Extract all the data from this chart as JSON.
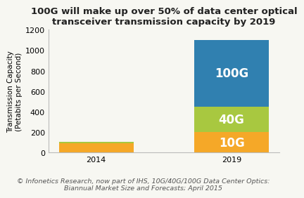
{
  "title_line1": "100G will make up over 50% of data center optical",
  "title_line2": "transceiver transmission capacity by 2019",
  "categories": [
    "2014",
    "2019"
  ],
  "values_10G": [
    90,
    200
  ],
  "values_40G": [
    15,
    250
  ],
  "values_100G": [
    0,
    650
  ],
  "color_10G": "#F5A828",
  "color_40G": "#A8C840",
  "color_100G": "#3080B0",
  "ylabel_top": "Transmission Capacity",
  "ylabel_bot": "(Petabits per Second)",
  "ylim": [
    0,
    1200
  ],
  "yticks": [
    0,
    200,
    400,
    600,
    800,
    1000,
    1200
  ],
  "label_10G": "10G",
  "label_40G": "40G",
  "label_100G": "100G",
  "footnote_line1": "© Infonetics Research, now part of IHS, 10G/40G/100G Data Center Optics:",
  "footnote_line2": "Biannual Market Size and Forecasts; April 2015",
  "background_color": "#f7f7f2",
  "bar_width": 0.55,
  "title_fontsize": 9.5,
  "label_fontsize": 12,
  "axis_fontsize": 7.5,
  "footnote_fontsize": 6.8,
  "tick_fontsize": 8
}
